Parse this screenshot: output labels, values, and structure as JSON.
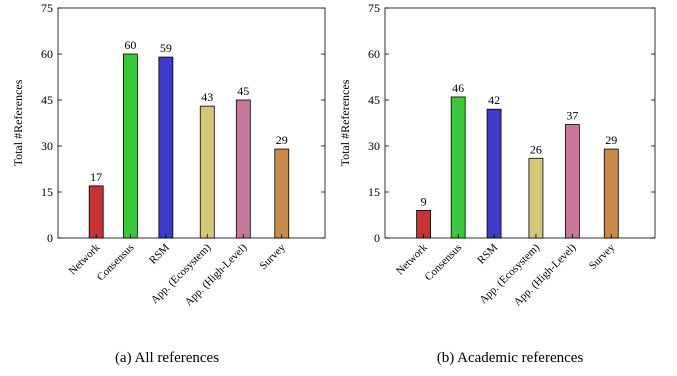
{
  "chart_data": [
    {
      "type": "bar",
      "caption": "(a) All references",
      "ylabel": "Total #References",
      "xlabel": "",
      "ylim": [
        0,
        75
      ],
      "yticks": [
        0,
        15,
        30,
        45,
        60,
        75
      ],
      "grid": false,
      "categories": [
        "Network",
        "Consensus",
        "RSM",
        "App. (Ecosystem)",
        "App. (High-Level)",
        "Survey"
      ],
      "values": [
        17,
        60,
        59,
        43,
        45,
        29
      ],
      "colors": [
        "#c83232",
        "#3cc83c",
        "#3c3cc8",
        "#d2c878",
        "#c8789a",
        "#c88a46"
      ]
    },
    {
      "type": "bar",
      "caption": "(b) Academic references",
      "ylabel": "Total #References",
      "xlabel": "",
      "ylim": [
        0,
        75
      ],
      "yticks": [
        0,
        15,
        30,
        45,
        60,
        75
      ],
      "grid": false,
      "categories": [
        "Network",
        "Consensus",
        "RSM",
        "App. (Ecosystem)",
        "App. (High-Level)",
        "Survey"
      ],
      "values": [
        9,
        46,
        42,
        26,
        37,
        29
      ],
      "colors": [
        "#c83232",
        "#3cc83c",
        "#3c3cc8",
        "#d2c878",
        "#c8789a",
        "#c88a46"
      ]
    }
  ]
}
